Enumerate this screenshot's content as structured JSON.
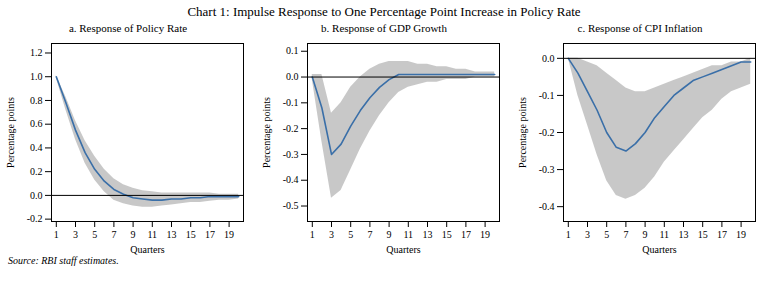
{
  "title": "Chart 1: Impulse Response to One Percentage Point Increase in Policy Rate",
  "source": "Source: RBI staff estimates.",
  "chart_data": [
    {
      "type": "line",
      "title": "a. Response of Policy Rate",
      "xlabel": "Quarters",
      "ylabel": "Percentage points",
      "x": [
        1,
        2,
        3,
        4,
        5,
        6,
        7,
        8,
        9,
        10,
        11,
        12,
        13,
        14,
        15,
        16,
        17,
        18,
        19,
        20
      ],
      "xlim": [
        0.5,
        20.5
      ],
      "xticks": [
        1,
        3,
        5,
        7,
        9,
        11,
        13,
        15,
        17,
        19
      ],
      "ylim": [
        -0.22,
        1.28
      ],
      "yticks": [
        -0.2,
        {
          "value": 0.0,
          "label": "0.0"
        },
        0.2,
        0.4,
        0.6,
        0.8,
        {
          "value": 1.0,
          "label": "1.0"
        },
        1.2
      ],
      "series": [
        {
          "type": "area",
          "color": "#aaaaaa",
          "upper": [
            1.01,
            0.83,
            0.63,
            0.46,
            0.33,
            0.22,
            0.14,
            0.09,
            0.06,
            0.04,
            0.03,
            0.02,
            0.02,
            0.02,
            0.02,
            0.02,
            0.02,
            0.01,
            0.01,
            0.01
          ],
          "lower": [
            0.99,
            0.72,
            0.47,
            0.27,
            0.13,
            0.03,
            -0.04,
            -0.07,
            -0.09,
            -0.1,
            -0.1,
            -0.09,
            -0.08,
            -0.07,
            -0.06,
            -0.06,
            -0.05,
            -0.04,
            -0.04,
            -0.03
          ]
        },
        {
          "type": "line",
          "color": "#3A6FA8",
          "values": [
            1.0,
            0.78,
            0.55,
            0.36,
            0.22,
            0.12,
            0.05,
            0.01,
            -0.02,
            -0.03,
            -0.04,
            -0.04,
            -0.03,
            -0.03,
            -0.02,
            -0.02,
            -0.01,
            -0.01,
            -0.01,
            -0.01
          ]
        }
      ]
    },
    {
      "type": "line",
      "title": "b. Response of  GDP Growth",
      "xlabel": "Quarters",
      "ylabel": "Percentage points",
      "x": [
        1,
        2,
        3,
        4,
        5,
        6,
        7,
        8,
        9,
        10,
        11,
        12,
        13,
        14,
        15,
        16,
        17,
        18,
        19,
        20
      ],
      "xlim": [
        0.5,
        20.5
      ],
      "xticks": [
        1,
        3,
        5,
        7,
        9,
        11,
        13,
        15,
        17,
        19
      ],
      "ylim": [
        -0.56,
        0.13
      ],
      "yticks": [
        -0.5,
        -0.4,
        -0.3,
        -0.2,
        -0.1,
        {
          "value": 0.0,
          "label": "0.0"
        },
        0.1
      ],
      "series": [
        {
          "type": "area",
          "color": "#aaaaaa",
          "upper": [
            0.01,
            0.01,
            -0.14,
            -0.1,
            -0.04,
            0.0,
            0.03,
            0.05,
            0.06,
            0.06,
            0.06,
            0.05,
            0.05,
            0.04,
            0.04,
            0.03,
            0.03,
            0.02,
            0.02,
            0.02
          ],
          "lower": [
            -0.01,
            -0.25,
            -0.47,
            -0.44,
            -0.36,
            -0.28,
            -0.21,
            -0.15,
            -0.1,
            -0.06,
            -0.04,
            -0.03,
            -0.02,
            -0.02,
            -0.01,
            -0.01,
            -0.01,
            0.0,
            0.0,
            0.0
          ]
        },
        {
          "type": "line",
          "color": "#3A6FA8",
          "values": [
            0.0,
            -0.12,
            -0.3,
            -0.26,
            -0.19,
            -0.13,
            -0.08,
            -0.04,
            -0.01,
            0.01,
            0.01,
            0.01,
            0.01,
            0.01,
            0.01,
            0.01,
            0.01,
            0.01,
            0.01,
            0.01
          ]
        }
      ]
    },
    {
      "type": "line",
      "title": "c. Response of  CPI Inflation",
      "xlabel": "Quarters",
      "ylabel": "Percentage points",
      "x": [
        1,
        2,
        3,
        4,
        5,
        6,
        7,
        8,
        9,
        10,
        11,
        12,
        13,
        14,
        15,
        16,
        17,
        18,
        19,
        20
      ],
      "xlim": [
        0.5,
        20.5
      ],
      "xticks": [
        1,
        3,
        5,
        7,
        9,
        11,
        13,
        15,
        17,
        19
      ],
      "ylim": [
        -0.44,
        0.04
      ],
      "yticks": [
        -0.4,
        -0.3,
        -0.2,
        -0.1,
        {
          "value": 0.0,
          "label": "0.0"
        }
      ],
      "series": [
        {
          "type": "area",
          "color": "#aaaaaa",
          "upper": [
            0.0,
            0.0,
            -0.01,
            -0.02,
            -0.04,
            -0.06,
            -0.08,
            -0.09,
            -0.09,
            -0.08,
            -0.07,
            -0.06,
            -0.05,
            -0.04,
            -0.03,
            -0.02,
            -0.02,
            -0.01,
            -0.01,
            0.0
          ],
          "lower": [
            0.0,
            -0.1,
            -0.18,
            -0.26,
            -0.33,
            -0.37,
            -0.38,
            -0.37,
            -0.35,
            -0.32,
            -0.28,
            -0.25,
            -0.22,
            -0.19,
            -0.16,
            -0.14,
            -0.11,
            -0.09,
            -0.08,
            -0.07
          ]
        },
        {
          "type": "line",
          "color": "#3A6FA8",
          "values": [
            0.0,
            -0.04,
            -0.09,
            -0.14,
            -0.2,
            -0.24,
            -0.25,
            -0.23,
            -0.2,
            -0.16,
            -0.13,
            -0.1,
            -0.08,
            -0.06,
            -0.05,
            -0.04,
            -0.03,
            -0.02,
            -0.01,
            -0.01
          ]
        }
      ]
    }
  ]
}
